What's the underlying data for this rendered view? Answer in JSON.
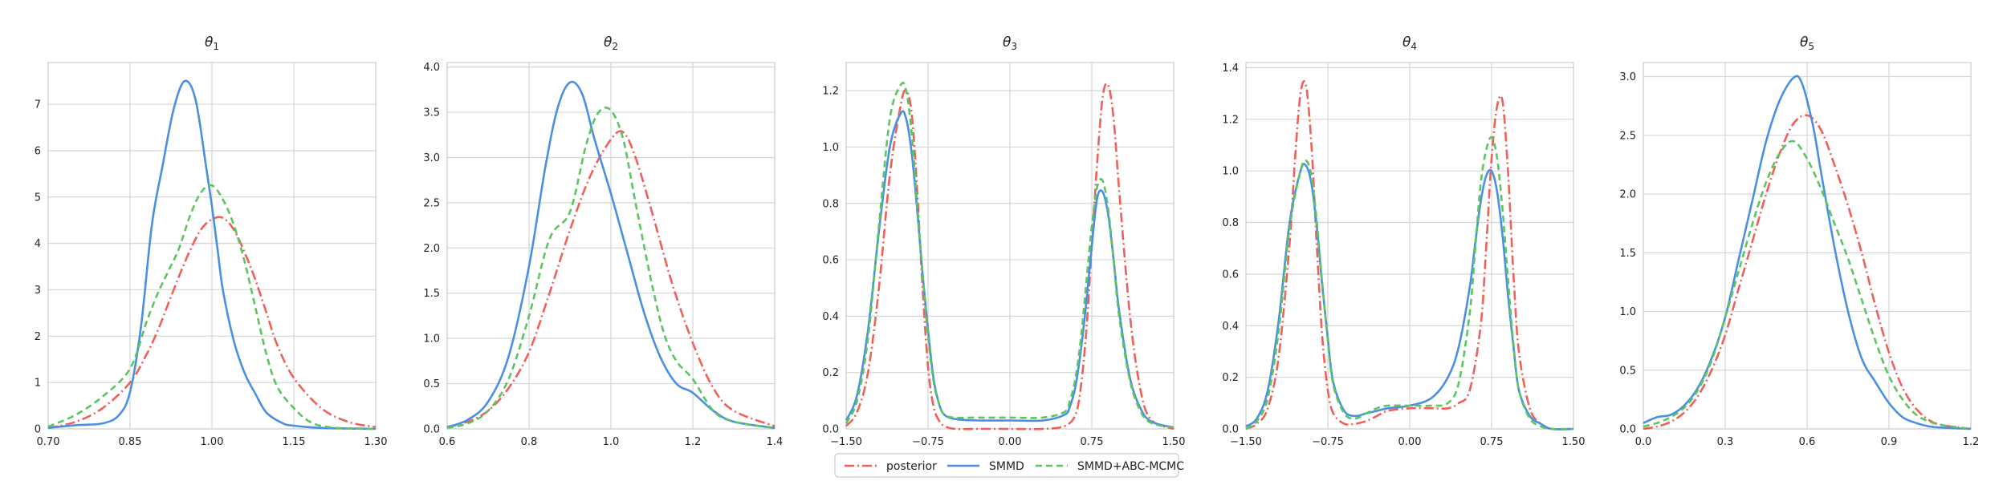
{
  "chart_data": [
    {
      "type": "line",
      "title": "θ",
      "title_sub": "1",
      "xlim": [
        0.7,
        1.3
      ],
      "ylim": [
        0,
        7.9
      ],
      "xticks": [
        0.7,
        0.85,
        1.0,
        1.15,
        1.3
      ],
      "xtick_labels": [
        "0.70",
        "0.85",
        "1.00",
        "1.15",
        "1.30"
      ],
      "yticks": [
        0,
        1,
        2,
        3,
        4,
        5,
        6,
        7
      ],
      "ytick_labels": [
        "0",
        "1",
        "2",
        "3",
        "4",
        "5",
        "6",
        "7"
      ],
      "series": [
        {
          "key": "posterior",
          "x": [
            0.7,
            0.75,
            0.8,
            0.85,
            0.88,
            0.9,
            0.92,
            0.94,
            0.96,
            0.98,
            1.0,
            1.02,
            1.04,
            1.06,
            1.08,
            1.1,
            1.12,
            1.15,
            1.2,
            1.25,
            1.3
          ],
          "values": [
            0.02,
            0.15,
            0.45,
            1.0,
            1.6,
            2.1,
            2.7,
            3.3,
            3.85,
            4.3,
            4.52,
            4.55,
            4.3,
            3.8,
            3.2,
            2.5,
            1.8,
            1.1,
            0.45,
            0.15,
            0.04
          ]
        },
        {
          "key": "smmd",
          "x": [
            0.7,
            0.75,
            0.8,
            0.83,
            0.85,
            0.87,
            0.89,
            0.91,
            0.93,
            0.95,
            0.97,
            0.99,
            1.0,
            1.01,
            1.02,
            1.04,
            1.06,
            1.08,
            1.1,
            1.13,
            1.15,
            1.2,
            1.3
          ],
          "values": [
            0.02,
            0.08,
            0.12,
            0.3,
            0.8,
            2.2,
            4.4,
            5.7,
            6.9,
            7.5,
            7.1,
            5.6,
            4.8,
            3.9,
            3.0,
            1.9,
            1.2,
            0.75,
            0.35,
            0.12,
            0.07,
            0.02,
            0.0
          ]
        },
        {
          "key": "smmd_abc",
          "x": [
            0.7,
            0.75,
            0.8,
            0.85,
            0.88,
            0.9,
            0.92,
            0.94,
            0.96,
            0.98,
            1.0,
            1.02,
            1.04,
            1.06,
            1.08,
            1.1,
            1.12,
            1.15,
            1.18,
            1.22,
            1.3
          ],
          "values": [
            0.05,
            0.3,
            0.7,
            1.3,
            2.3,
            2.9,
            3.4,
            3.9,
            4.6,
            5.1,
            5.25,
            4.95,
            4.4,
            3.6,
            2.6,
            1.6,
            0.9,
            0.45,
            0.15,
            0.03,
            0.0
          ]
        }
      ]
    },
    {
      "type": "line",
      "title": "θ",
      "title_sub": "2",
      "xlim": [
        0.6,
        1.4
      ],
      "ylim": [
        0,
        4.05
      ],
      "xticks": [
        0.6,
        0.8,
        1.0,
        1.2,
        1.4
      ],
      "xtick_labels": [
        "0.6",
        "0.8",
        "1.0",
        "1.2",
        "1.4"
      ],
      "yticks": [
        0,
        0.5,
        1.0,
        1.5,
        2.0,
        2.5,
        3.0,
        3.5,
        4.0
      ],
      "ytick_labels": [
        "0.0",
        "0.5",
        "1.0",
        "1.5",
        "2.0",
        "2.5",
        "3.0",
        "3.5",
        "4.0"
      ],
      "series": [
        {
          "key": "posterior",
          "x": [
            0.6,
            0.65,
            0.7,
            0.75,
            0.8,
            0.85,
            0.9,
            0.95,
            1.0,
            1.03,
            1.06,
            1.1,
            1.15,
            1.2,
            1.25,
            1.3,
            1.4
          ],
          "values": [
            0.02,
            0.08,
            0.2,
            0.45,
            0.85,
            1.5,
            2.2,
            2.8,
            3.2,
            3.28,
            3.0,
            2.4,
            1.6,
            0.95,
            0.45,
            0.2,
            0.03
          ]
        },
        {
          "key": "smmd",
          "x": [
            0.6,
            0.65,
            0.7,
            0.75,
            0.8,
            0.84,
            0.87,
            0.9,
            0.93,
            0.96,
            1.0,
            1.04,
            1.08,
            1.12,
            1.16,
            1.2,
            1.25,
            1.3,
            1.4
          ],
          "values": [
            0.02,
            0.1,
            0.3,
            0.8,
            1.8,
            2.9,
            3.55,
            3.83,
            3.7,
            3.2,
            2.6,
            1.95,
            1.3,
            0.8,
            0.5,
            0.4,
            0.2,
            0.08,
            0.01
          ]
        },
        {
          "key": "smmd_abc",
          "x": [
            0.6,
            0.65,
            0.7,
            0.75,
            0.8,
            0.85,
            0.9,
            0.94,
            0.97,
            1.0,
            1.03,
            1.06,
            1.1,
            1.13,
            1.16,
            1.2,
            1.25,
            1.3,
            1.4
          ],
          "values": [
            0.01,
            0.06,
            0.2,
            0.55,
            1.25,
            2.1,
            2.4,
            3.15,
            3.5,
            3.52,
            3.2,
            2.5,
            1.6,
            1.05,
            0.75,
            0.55,
            0.2,
            0.08,
            0.01
          ]
        }
      ]
    },
    {
      "type": "line",
      "title": "θ",
      "title_sub": "3",
      "xlim": [
        -1.5,
        1.5
      ],
      "ylim": [
        0,
        1.3
      ],
      "xticks": [
        -1.5,
        -0.75,
        0.0,
        0.75,
        1.5
      ],
      "xtick_labels": [
        "−1.50",
        "−0.75",
        "0.00",
        "0.75",
        "1.50"
      ],
      "yticks": [
        0,
        0.2,
        0.4,
        0.6,
        0.8,
        1.0,
        1.2
      ],
      "ytick_labels": [
        "0.0",
        "0.2",
        "0.4",
        "0.6",
        "0.8",
        "1.0",
        "1.2"
      ],
      "series": [
        {
          "key": "posterior",
          "x": [
            -1.5,
            -1.4,
            -1.3,
            -1.2,
            -1.1,
            -1.0,
            -0.95,
            -0.9,
            -0.85,
            -0.8,
            -0.75,
            -0.7,
            -0.65,
            -0.6,
            -0.5,
            -0.3,
            0.0,
            0.3,
            0.5,
            0.6,
            0.65,
            0.7,
            0.75,
            0.8,
            0.85,
            0.9,
            0.95,
            1.0,
            1.1,
            1.2,
            1.3,
            1.5
          ],
          "values": [
            0.01,
            0.06,
            0.2,
            0.5,
            0.9,
            1.15,
            1.2,
            1.12,
            0.85,
            0.5,
            0.22,
            0.08,
            0.03,
            0.01,
            0.0,
            0.0,
            0.0,
            0.0,
            0.01,
            0.05,
            0.15,
            0.35,
            0.65,
            0.95,
            1.18,
            1.22,
            1.1,
            0.85,
            0.4,
            0.13,
            0.03,
            0.0
          ]
        },
        {
          "key": "smmd",
          "x": [
            -1.5,
            -1.4,
            -1.3,
            -1.2,
            -1.1,
            -1.0,
            -0.95,
            -0.9,
            -0.85,
            -0.8,
            -0.75,
            -0.7,
            -0.65,
            -0.6,
            -0.5,
            -0.3,
            0.0,
            0.3,
            0.5,
            0.55,
            0.6,
            0.65,
            0.7,
            0.75,
            0.8,
            0.85,
            0.9,
            0.95,
            1.0,
            1.1,
            1.2,
            1.3,
            1.5
          ],
          "values": [
            0.03,
            0.12,
            0.35,
            0.7,
            1.0,
            1.12,
            1.1,
            0.98,
            0.78,
            0.55,
            0.35,
            0.18,
            0.09,
            0.05,
            0.035,
            0.03,
            0.03,
            0.03,
            0.05,
            0.08,
            0.15,
            0.28,
            0.45,
            0.65,
            0.82,
            0.84,
            0.76,
            0.6,
            0.42,
            0.18,
            0.07,
            0.025,
            0.005
          ]
        },
        {
          "key": "smmd_abc",
          "x": [
            -1.5,
            -1.4,
            -1.3,
            -1.2,
            -1.1,
            -1.0,
            -0.95,
            -0.9,
            -0.85,
            -0.8,
            -0.75,
            -0.7,
            -0.65,
            -0.6,
            -0.5,
            -0.3,
            0.0,
            0.3,
            0.5,
            0.55,
            0.6,
            0.65,
            0.7,
            0.75,
            0.8,
            0.85,
            0.9,
            0.95,
            1.0,
            1.1,
            1.2,
            1.3,
            1.5
          ],
          "values": [
            0.02,
            0.1,
            0.32,
            0.72,
            1.1,
            1.22,
            1.2,
            1.05,
            0.8,
            0.55,
            0.33,
            0.17,
            0.09,
            0.05,
            0.04,
            0.04,
            0.04,
            0.04,
            0.06,
            0.1,
            0.18,
            0.32,
            0.52,
            0.72,
            0.86,
            0.88,
            0.78,
            0.6,
            0.4,
            0.17,
            0.06,
            0.02,
            0.005
          ]
        }
      ]
    },
    {
      "type": "line",
      "title": "θ",
      "title_sub": "4",
      "xlim": [
        -1.5,
        1.5
      ],
      "ylim": [
        0,
        1.42
      ],
      "xticks": [
        -1.5,
        -0.75,
        0.0,
        0.75,
        1.5
      ],
      "xtick_labels": [
        "−1.50",
        "−0.75",
        "0.00",
        "0.75",
        "1.50"
      ],
      "yticks": [
        0,
        0.2,
        0.4,
        0.6,
        0.8,
        1.0,
        1.2,
        1.4
      ],
      "ytick_labels": [
        "0.0",
        "0.2",
        "0.4",
        "0.6",
        "0.8",
        "1.0",
        "1.2",
        "1.4"
      ],
      "series": [
        {
          "key": "posterior",
          "x": [
            -1.5,
            -1.4,
            -1.3,
            -1.2,
            -1.1,
            -1.05,
            -1.0,
            -0.95,
            -0.9,
            -0.85,
            -0.8,
            -0.75,
            -0.7,
            -0.6,
            -0.5,
            -0.4,
            -0.3,
            -0.2,
            0.0,
            0.2,
            0.35,
            0.45,
            0.55,
            0.65,
            0.7,
            0.75,
            0.8,
            0.85,
            0.9,
            0.95,
            1.0,
            1.1,
            1.2,
            1.3,
            1.5
          ],
          "values": [
            0.0,
            0.02,
            0.08,
            0.28,
            0.72,
            1.05,
            1.3,
            1.33,
            1.1,
            0.7,
            0.35,
            0.15,
            0.06,
            0.02,
            0.02,
            0.03,
            0.05,
            0.07,
            0.08,
            0.08,
            0.08,
            0.1,
            0.15,
            0.4,
            0.7,
            1.05,
            1.25,
            1.27,
            1.0,
            0.6,
            0.3,
            0.08,
            0.02,
            0.0,
            0.0
          ]
        },
        {
          "key": "smmd",
          "x": [
            -1.5,
            -1.4,
            -1.3,
            -1.2,
            -1.1,
            -1.0,
            -0.95,
            -0.9,
            -0.85,
            -0.8,
            -0.75,
            -0.7,
            -0.6,
            -0.5,
            -0.4,
            -0.3,
            -0.2,
            0.0,
            0.2,
            0.35,
            0.45,
            0.55,
            0.6,
            0.65,
            0.7,
            0.75,
            0.8,
            0.85,
            0.9,
            0.95,
            1.0,
            1.1,
            1.2,
            1.3,
            1.5
          ],
          "values": [
            0.01,
            0.04,
            0.15,
            0.42,
            0.8,
            1.0,
            1.02,
            0.95,
            0.78,
            0.55,
            0.35,
            0.18,
            0.07,
            0.05,
            0.06,
            0.07,
            0.08,
            0.09,
            0.12,
            0.2,
            0.32,
            0.55,
            0.72,
            0.88,
            0.98,
            1.0,
            0.92,
            0.75,
            0.52,
            0.32,
            0.15,
            0.05,
            0.02,
            0.0,
            0.0
          ]
        },
        {
          "key": "smmd_abc",
          "x": [
            -1.5,
            -1.4,
            -1.3,
            -1.2,
            -1.1,
            -1.0,
            -0.95,
            -0.9,
            -0.85,
            -0.8,
            -0.75,
            -0.7,
            -0.6,
            -0.5,
            -0.4,
            -0.3,
            -0.2,
            0.0,
            0.2,
            0.35,
            0.45,
            0.55,
            0.6,
            0.65,
            0.7,
            0.75,
            0.8,
            0.85,
            0.9,
            0.95,
            1.0,
            1.1,
            1.2,
            1.3,
            1.5
          ],
          "values": [
            0.0,
            0.03,
            0.12,
            0.38,
            0.78,
            1.0,
            1.04,
            0.98,
            0.8,
            0.56,
            0.34,
            0.17,
            0.06,
            0.04,
            0.06,
            0.08,
            0.09,
            0.09,
            0.09,
            0.1,
            0.18,
            0.45,
            0.7,
            0.95,
            1.08,
            1.13,
            1.05,
            0.85,
            0.58,
            0.33,
            0.15,
            0.04,
            0.01,
            0.0,
            0.0
          ]
        }
      ]
    },
    {
      "type": "line",
      "title": "θ",
      "title_sub": "5",
      "xlim": [
        0.0,
        1.2
      ],
      "ylim": [
        0,
        3.12
      ],
      "xticks": [
        0.0,
        0.3,
        0.6,
        0.9,
        1.2
      ],
      "xtick_labels": [
        "0.0",
        "0.3",
        "0.6",
        "0.9",
        "1.2"
      ],
      "yticks": [
        0,
        0.5,
        1.0,
        1.5,
        2.0,
        2.5,
        3.0
      ],
      "ytick_labels": [
        "0.0",
        "0.5",
        "1.0",
        "1.5",
        "2.0",
        "2.5",
        "3.0"
      ],
      "series": [
        {
          "key": "posterior",
          "x": [
            0.0,
            0.05,
            0.1,
            0.15,
            0.2,
            0.25,
            0.3,
            0.35,
            0.4,
            0.45,
            0.5,
            0.55,
            0.6,
            0.65,
            0.7,
            0.75,
            0.8,
            0.85,
            0.9,
            0.95,
            1.0,
            1.05,
            1.1,
            1.2
          ],
          "values": [
            0.0,
            0.02,
            0.06,
            0.14,
            0.28,
            0.5,
            0.8,
            1.2,
            1.6,
            2.0,
            2.35,
            2.6,
            2.67,
            2.55,
            2.25,
            1.9,
            1.5,
            1.05,
            0.65,
            0.35,
            0.17,
            0.07,
            0.03,
            0.0
          ]
        },
        {
          "key": "smmd",
          "x": [
            0.0,
            0.05,
            0.1,
            0.15,
            0.2,
            0.25,
            0.3,
            0.35,
            0.4,
            0.45,
            0.5,
            0.55,
            0.58,
            0.62,
            0.65,
            0.7,
            0.75,
            0.8,
            0.85,
            0.9,
            0.95,
            1.0,
            1.05,
            1.1,
            1.2
          ],
          "values": [
            0.05,
            0.1,
            0.12,
            0.2,
            0.35,
            0.6,
            0.95,
            1.45,
            1.95,
            2.45,
            2.8,
            2.99,
            2.95,
            2.6,
            2.2,
            1.55,
            1.0,
            0.6,
            0.4,
            0.22,
            0.1,
            0.05,
            0.02,
            0.01,
            0.0
          ]
        },
        {
          "key": "smmd_abc",
          "x": [
            0.0,
            0.05,
            0.1,
            0.15,
            0.2,
            0.25,
            0.3,
            0.35,
            0.4,
            0.45,
            0.5,
            0.55,
            0.6,
            0.65,
            0.7,
            0.75,
            0.8,
            0.85,
            0.9,
            0.95,
            1.0,
            1.05,
            1.1,
            1.2
          ],
          "values": [
            0.02,
            0.05,
            0.1,
            0.18,
            0.33,
            0.58,
            0.95,
            1.35,
            1.75,
            2.1,
            2.35,
            2.45,
            2.3,
            2.05,
            1.75,
            1.45,
            1.1,
            0.75,
            0.45,
            0.25,
            0.12,
            0.06,
            0.03,
            0.0
          ]
        }
      ]
    }
  ],
  "series_styles": {
    "posterior": {
      "color": "#f0605a",
      "dash": "12,4,2,4"
    },
    "smmd": {
      "color": "#4a90e2",
      "dash": ""
    },
    "smmd_abc": {
      "color": "#5cc561",
      "dash": "8,5"
    }
  },
  "legend": {
    "placement": "bottom-center",
    "items": [
      {
        "key": "posterior",
        "label": "posterior"
      },
      {
        "key": "smmd",
        "label": "SMMD"
      },
      {
        "key": "smmd_abc",
        "label": "SMMD+ABC-MCMC"
      }
    ]
  }
}
